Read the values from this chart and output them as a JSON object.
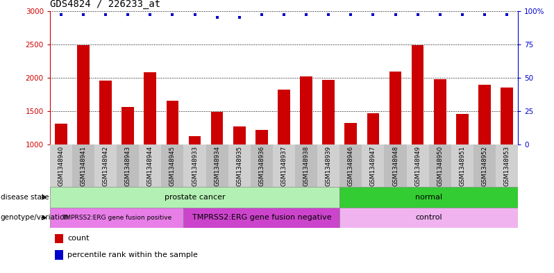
{
  "title": "GDS4824 / 226233_at",
  "samples": [
    "GSM1348940",
    "GSM1348941",
    "GSM1348942",
    "GSM1348943",
    "GSM1348944",
    "GSM1348945",
    "GSM1348933",
    "GSM1348934",
    "GSM1348935",
    "GSM1348936",
    "GSM1348937",
    "GSM1348938",
    "GSM1348939",
    "GSM1348946",
    "GSM1348947",
    "GSM1348948",
    "GSM1348949",
    "GSM1348950",
    "GSM1348951",
    "GSM1348952",
    "GSM1348953"
  ],
  "counts": [
    1310,
    2490,
    1960,
    1560,
    2080,
    1660,
    1130,
    1490,
    1270,
    1220,
    1820,
    2020,
    1970,
    1330,
    1470,
    2090,
    2490,
    1980,
    1460,
    1900,
    1850
  ],
  "percentile_ranks": [
    97,
    97,
    97,
    97,
    97,
    97,
    97,
    95,
    95,
    97,
    97,
    97,
    97,
    97,
    97,
    97,
    97,
    97,
    97,
    97,
    97
  ],
  "bar_color": "#cc0000",
  "dot_color": "#0000cc",
  "ylim_left": [
    1000,
    3000
  ],
  "ylim_right": [
    0,
    100
  ],
  "yticks_left": [
    1000,
    1500,
    2000,
    2500,
    3000
  ],
  "yticks_right": [
    0,
    25,
    50,
    75,
    100
  ],
  "disease_state_groups": [
    {
      "label": "prostate cancer",
      "start": 0,
      "end": 13,
      "color": "#b3f0b3"
    },
    {
      "label": "normal",
      "start": 13,
      "end": 21,
      "color": "#33cc33"
    }
  ],
  "genotype_groups": [
    {
      "label": "TMPRSS2:ERG gene fusion positive",
      "start": 0,
      "end": 6,
      "color": "#e87ee8",
      "fontsize": 6.5
    },
    {
      "label": "TMPRSS2:ERG gene fusion negative",
      "start": 6,
      "end": 13,
      "color": "#cc44cc",
      "fontsize": 8
    },
    {
      "label": "control",
      "start": 13,
      "end": 21,
      "color": "#f0b3f0",
      "fontsize": 8
    }
  ],
  "background_color": "#ffffff",
  "tick_bg_colors": [
    "#d0d0d0",
    "#bebebe"
  ]
}
